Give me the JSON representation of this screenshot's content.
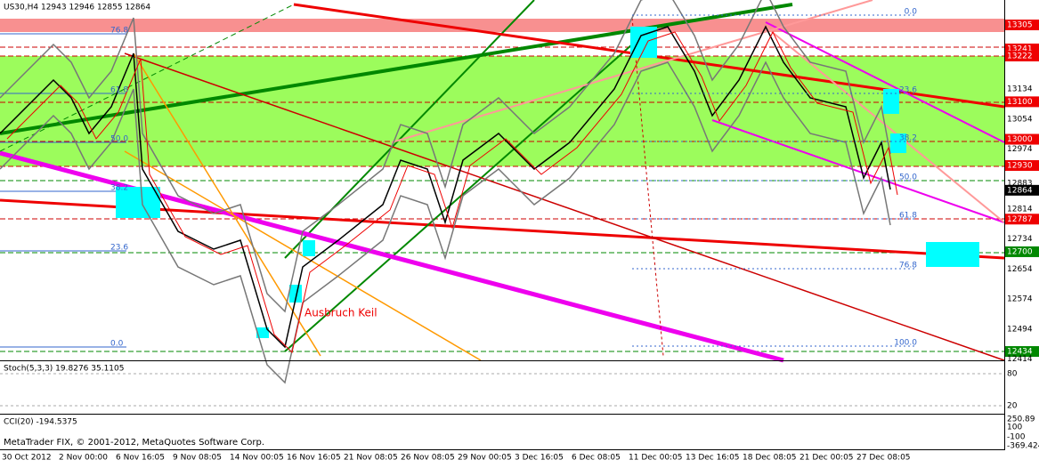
{
  "header": {
    "title": "US30,H4 12943 12946 12855 12864"
  },
  "price_axis": [
    {
      "label": "13394"
    },
    {
      "label": "13305",
      "bg": "red"
    },
    {
      "label": "13241",
      "bg": "red"
    },
    {
      "label": "13222",
      "bg": "red"
    },
    {
      "label": "13134"
    },
    {
      "label": "13100",
      "bg": "red"
    },
    {
      "label": "13054"
    },
    {
      "label": "13000",
      "bg": "red"
    },
    {
      "label": "12974"
    },
    {
      "label": "12930",
      "bg": "red"
    },
    {
      "label": "12883"
    },
    {
      "label": "12864",
      "bg": "black"
    },
    {
      "label": "12814"
    },
    {
      "label": "12787",
      "bg": "red"
    },
    {
      "label": "12734"
    },
    {
      "label": "12700",
      "bg": "green"
    },
    {
      "label": "12654"
    },
    {
      "label": "12574"
    },
    {
      "label": "12494"
    },
    {
      "label": "12434",
      "bg": "green"
    },
    {
      "label": "12414"
    }
  ],
  "time_axis": [
    "30 Oct 2012",
    "2 Nov 00:00",
    "6 Nov 16:05",
    "9 Nov 08:05",
    "14 Nov 00:05",
    "16 Nov 16:05",
    "21 Nov 08:05",
    "26 Nov 08:05",
    "29 Nov 00:05",
    "3 Dec 16:05",
    "6 Dec 08:05",
    "11 Dec 00:05",
    "13 Dec 16:05",
    "18 Dec 08:05",
    "21 Dec 00:05",
    "27 Dec 08:05"
  ],
  "fib_left": [
    "76.8",
    "61.8",
    "50.0",
    "38.2",
    "23.6",
    "0.0"
  ],
  "fib_right": [
    "0.0",
    "23.6",
    "38.2",
    "50.0",
    "61.8",
    "76.8",
    "100.0"
  ],
  "annotation": "Ausbruch Keil",
  "stoch": {
    "label": "Stoch(5,3,3) 19.8276 35.1105",
    "levels": [
      "80",
      "20"
    ]
  },
  "cci": {
    "label": "CCI(20) -194.5375",
    "levels": [
      "250.89",
      "100",
      "-100",
      "-369.4246"
    ]
  },
  "footer": "MetaTrader FIX, © 2001-2012, MetaQuotes Software Corp."
}
